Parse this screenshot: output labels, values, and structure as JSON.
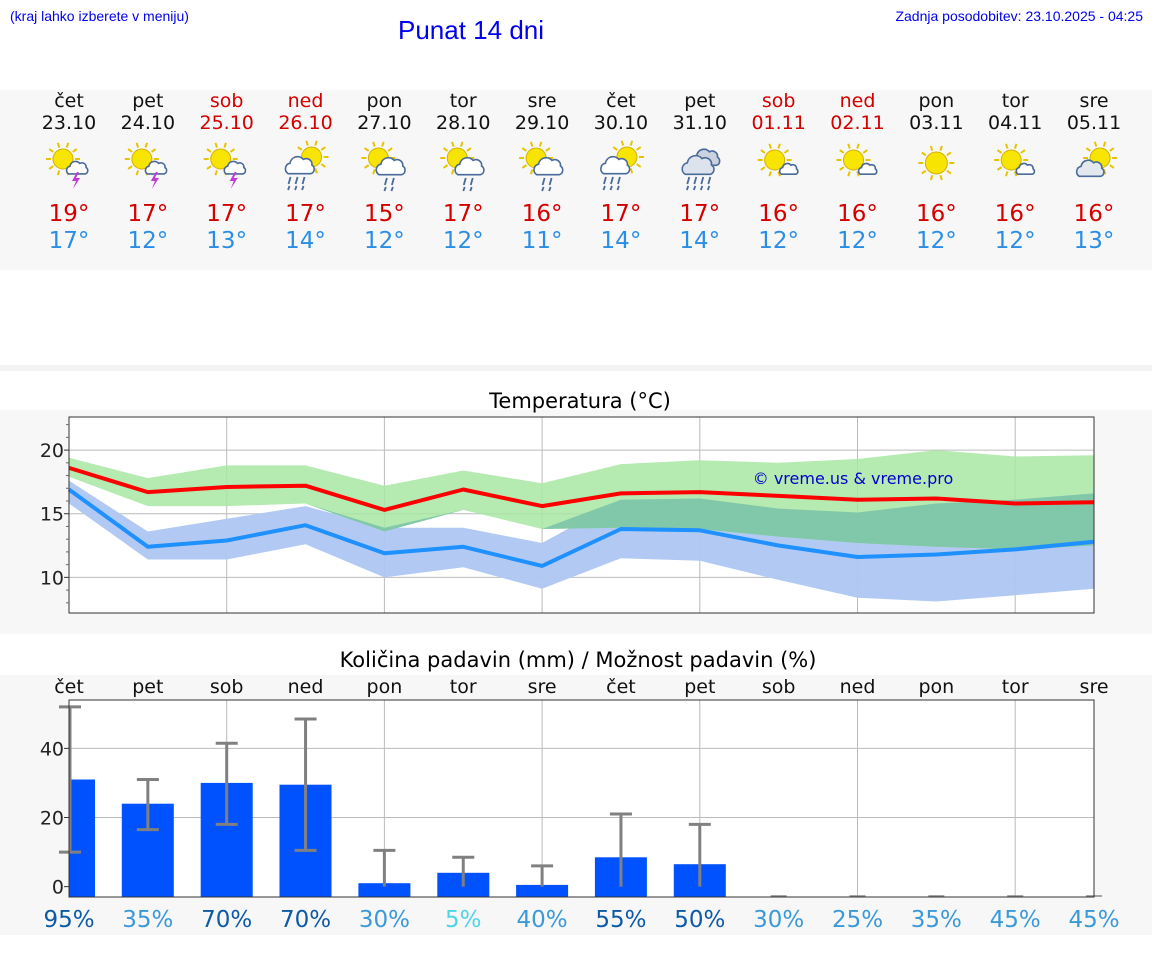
{
  "header": {
    "menu_hint": "(kraj lahko izberete v meniju)",
    "title": "Punat 14 dni",
    "last_update": "Zadnja posodobitev: 23.10.2025 - 04:25"
  },
  "colors": {
    "weekend": "#d40000",
    "weekday": "#111111",
    "high_temp": "#d40000",
    "low_temp": "#2b8ee6",
    "high_line": "#ff0000",
    "high_band": "#a8e6a3",
    "low_line": "#1e90ff",
    "low_band": "#aec7f2",
    "overlap_band": "#7cc4a8",
    "bar": "#0052ff",
    "error_bar": "#808080",
    "watermark": "#0000cc"
  },
  "days": [
    {
      "dow": "čet",
      "date": "23.10",
      "weekend": false,
      "icon": "sun-cloud-thunder-icon",
      "hi": "19°",
      "lo": "17°"
    },
    {
      "dow": "pet",
      "date": "24.10",
      "weekend": false,
      "icon": "sun-cloud-thunder-icon",
      "hi": "17°",
      "lo": "12°"
    },
    {
      "dow": "sob",
      "date": "25.10",
      "weekend": true,
      "icon": "sun-cloud-thunder-icon",
      "hi": "17°",
      "lo": "13°"
    },
    {
      "dow": "ned",
      "date": "26.10",
      "weekend": true,
      "icon": "sun-cloud-rain-icon",
      "hi": "17°",
      "lo": "14°"
    },
    {
      "dow": "pon",
      "date": "27.10",
      "weekend": false,
      "icon": "sun-cloud-light-rain-icon",
      "hi": "15°",
      "lo": "12°"
    },
    {
      "dow": "tor",
      "date": "28.10",
      "weekend": false,
      "icon": "sun-cloud-light-rain-icon",
      "hi": "17°",
      "lo": "12°"
    },
    {
      "dow": "sre",
      "date": "29.10",
      "weekend": false,
      "icon": "sun-cloud-light-rain-icon",
      "hi": "16°",
      "lo": "11°"
    },
    {
      "dow": "čet",
      "date": "30.10",
      "weekend": false,
      "icon": "sun-cloud-rain-icon",
      "hi": "17°",
      "lo": "14°"
    },
    {
      "dow": "pet",
      "date": "31.10",
      "weekend": false,
      "icon": "cloud-rain-icon",
      "hi": "17°",
      "lo": "14°"
    },
    {
      "dow": "sob",
      "date": "01.11",
      "weekend": true,
      "icon": "sun-small-cloud-icon",
      "hi": "16°",
      "lo": "12°"
    },
    {
      "dow": "ned",
      "date": "02.11",
      "weekend": true,
      "icon": "sun-small-cloud-icon",
      "hi": "16°",
      "lo": "12°"
    },
    {
      "dow": "pon",
      "date": "03.11",
      "weekend": false,
      "icon": "sun-icon",
      "hi": "16°",
      "lo": "12°"
    },
    {
      "dow": "tor",
      "date": "04.11",
      "weekend": false,
      "icon": "sun-small-cloud-icon",
      "hi": "16°",
      "lo": "12°"
    },
    {
      "dow": "sre",
      "date": "05.11",
      "weekend": false,
      "icon": "sun-cloud-icon",
      "hi": "16°",
      "lo": "13°"
    }
  ],
  "chart_data": [
    {
      "type": "line",
      "title": "Temperatura (°C)",
      "watermark": "© vreme.us & vreme.pro",
      "ylim": [
        7.2,
        22.6
      ],
      "yticks": [
        10,
        15,
        20
      ],
      "xlim": [
        0,
        13
      ],
      "grid": true,
      "x": [
        0,
        1,
        2,
        3,
        4,
        5,
        6,
        7,
        8,
        9,
        10,
        11,
        12,
        13
      ],
      "series": [
        {
          "name": "max",
          "values": [
            18.6,
            16.7,
            17.1,
            17.2,
            15.3,
            16.9,
            15.6,
            16.6,
            16.7,
            16.4,
            16.1,
            16.2,
            15.8,
            15.9
          ],
          "band_low": [
            17.9,
            15.6,
            15.6,
            15.8,
            13.6,
            15.3,
            13.8,
            13.9,
            13.8,
            13.2,
            12.7,
            12.4,
            12.2,
            12.5
          ],
          "band_high": [
            19.4,
            17.8,
            18.8,
            18.8,
            17.2,
            18.4,
            17.4,
            18.9,
            19.2,
            19.0,
            19.3,
            20.0,
            19.5,
            19.6
          ]
        },
        {
          "name": "min",
          "values": [
            16.9,
            12.4,
            12.9,
            14.1,
            11.9,
            12.4,
            10.9,
            13.8,
            13.7,
            12.5,
            11.6,
            11.8,
            12.2,
            12.8
          ],
          "band_low": [
            15.8,
            11.4,
            11.4,
            12.6,
            10.0,
            10.8,
            9.1,
            11.5,
            11.3,
            9.8,
            8.4,
            8.1,
            8.6,
            9.1
          ],
          "band_high": [
            17.6,
            13.6,
            14.6,
            15.6,
            13.9,
            13.9,
            12.7,
            16.1,
            16.2,
            15.4,
            15.1,
            15.8,
            16.1,
            16.6
          ]
        }
      ]
    },
    {
      "type": "bar",
      "title": "Količina padavin (mm) / Možnost padavin (%)",
      "categories": [
        "čet",
        "pet",
        "sob",
        "ned",
        "pon",
        "tor",
        "sre",
        "čet",
        "pet",
        "sob",
        "ned",
        "pon",
        "tor",
        "sre"
      ],
      "values": [
        31,
        24,
        30,
        29.5,
        1,
        4,
        0.5,
        8.5,
        6.5,
        0,
        0,
        0,
        0,
        0
      ],
      "err_low": [
        10,
        16.5,
        18,
        10.5,
        0,
        0,
        0,
        0,
        0,
        0,
        0,
        0,
        0,
        0
      ],
      "err_high": [
        52,
        31,
        41.5,
        48.5,
        10.5,
        8.5,
        6,
        21,
        18,
        0,
        0,
        0,
        0,
        0
      ],
      "ylim": [
        -3,
        54
      ],
      "yticks": [
        0,
        20,
        40
      ],
      "probability": [
        "95%",
        "35%",
        "70%",
        "70%",
        "30%",
        "5%",
        "40%",
        "55%",
        "50%",
        "30%",
        "25%",
        "35%",
        "45%",
        "45%"
      ],
      "probability_values": [
        95,
        35,
        70,
        70,
        30,
        5,
        40,
        55,
        50,
        30,
        25,
        35,
        45,
        45
      ],
      "probability_colors": [
        "#0d5aa7",
        "#3a9ad9",
        "#0d5aa7",
        "#0d5aa7",
        "#3a9ad9",
        "#4fd6e6",
        "#3a9ad9",
        "#0d5aa7",
        "#0d5aa7",
        "#3a9ad9",
        "#3a9ad9",
        "#3a9ad9",
        "#3a9ad9",
        "#3a9ad9"
      ]
    }
  ]
}
